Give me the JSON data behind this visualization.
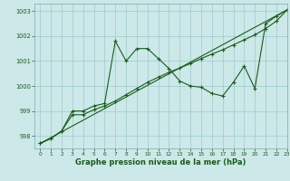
{
  "xlabel": "Graphe pression niveau de la mer (hPa)",
  "background_color": "#cce8e8",
  "grid_color": "#99cccc",
  "line_color": "#1a5c1a",
  "ylim": [
    997.5,
    1003.3
  ],
  "xlim": [
    -0.5,
    23
  ],
  "yticks": [
    998,
    999,
    1000,
    1001,
    1002,
    1003
  ],
  "xticks": [
    0,
    1,
    2,
    3,
    4,
    5,
    6,
    7,
    8,
    9,
    10,
    11,
    12,
    13,
    14,
    15,
    16,
    17,
    18,
    19,
    20,
    21,
    22,
    23
  ],
  "line1_x": [
    0,
    1,
    2,
    3,
    4,
    5,
    6,
    7,
    8,
    9,
    10,
    11,
    12,
    13,
    14,
    15,
    16,
    17,
    18,
    19,
    20,
    21,
    22,
    23
  ],
  "line1_y": [
    997.7,
    997.9,
    998.2,
    999.0,
    999.0,
    999.2,
    999.3,
    1001.8,
    1001.0,
    1001.5,
    1001.5,
    1001.1,
    1000.7,
    1000.2,
    1000.0,
    999.95,
    999.7,
    999.6,
    1000.15,
    1000.8,
    999.9,
    1002.5,
    1002.8,
    1003.05
  ],
  "line2_x": [
    0,
    1,
    2,
    3,
    4,
    5,
    6,
    7,
    8,
    9,
    10,
    11,
    12,
    13,
    14,
    15,
    16,
    17,
    18,
    19,
    20,
    21,
    22,
    23
  ],
  "line2_y": [
    997.7,
    997.9,
    998.2,
    998.85,
    998.85,
    999.05,
    999.2,
    999.4,
    999.65,
    999.9,
    1000.15,
    1000.35,
    1000.55,
    1000.72,
    1000.9,
    1001.1,
    1001.28,
    1001.45,
    1001.65,
    1001.85,
    1002.05,
    1002.3,
    1002.6,
    1003.05
  ],
  "line3_x": [
    0,
    23
  ],
  "line3_y": [
    997.7,
    1003.05
  ]
}
